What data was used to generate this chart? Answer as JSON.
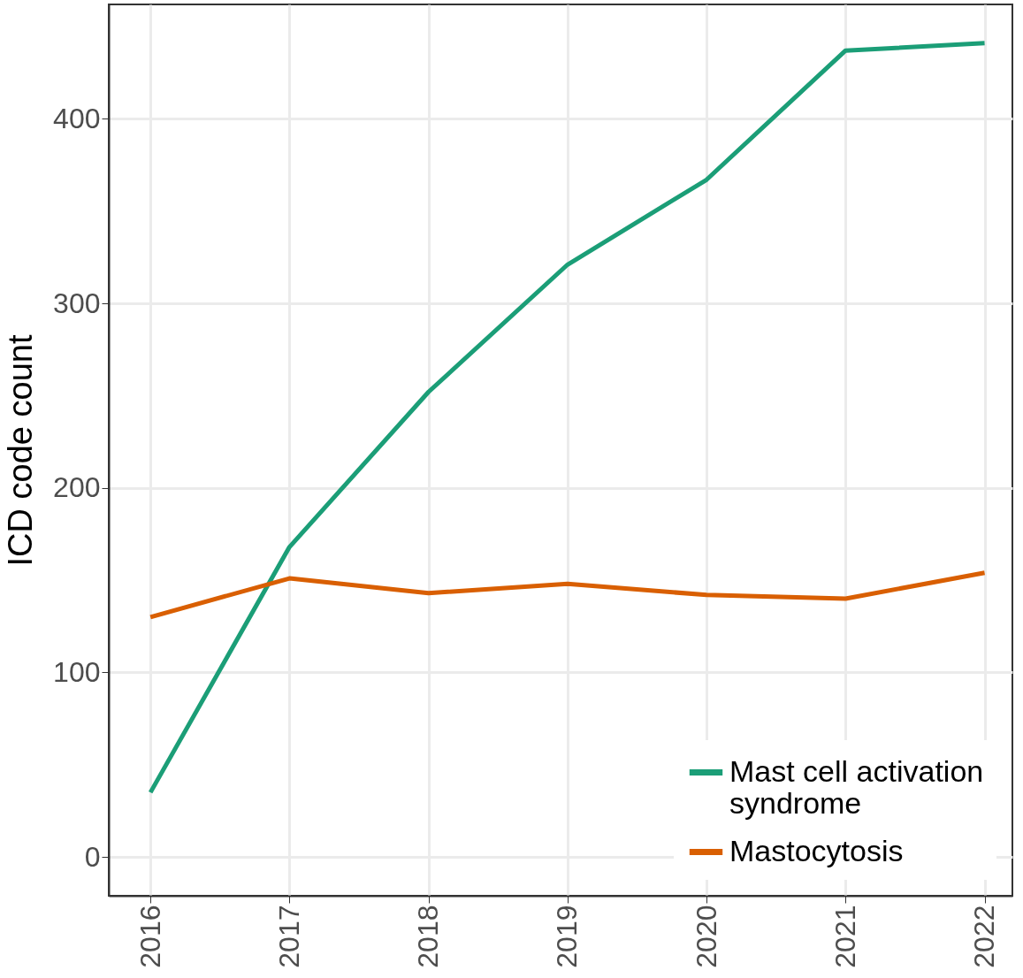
{
  "chart_data": {
    "type": "line",
    "ylabel": "ICD code count",
    "x": [
      2016,
      2017,
      2018,
      2019,
      2020,
      2021,
      2022
    ],
    "series": [
      {
        "name": "Mast cell activation syndrome",
        "color": "#1b9e77",
        "values": [
          35,
          168,
          252,
          321,
          367,
          437,
          441
        ]
      },
      {
        "name": "Mastocytosis",
        "color": "#d95f02",
        "values": [
          130,
          151,
          143,
          148,
          142,
          140,
          154
        ]
      }
    ],
    "xlim": [
      2015.7,
      2022.2
    ],
    "xticks": [
      2016,
      2017,
      2018,
      2019,
      2020,
      2021,
      2022
    ],
    "ylim": [
      -21,
      462
    ],
    "yticks": [
      0,
      100,
      200,
      300,
      400
    ],
    "grid": true,
    "legend": "bottom right",
    "line_style": "solid",
    "marker": "none"
  }
}
